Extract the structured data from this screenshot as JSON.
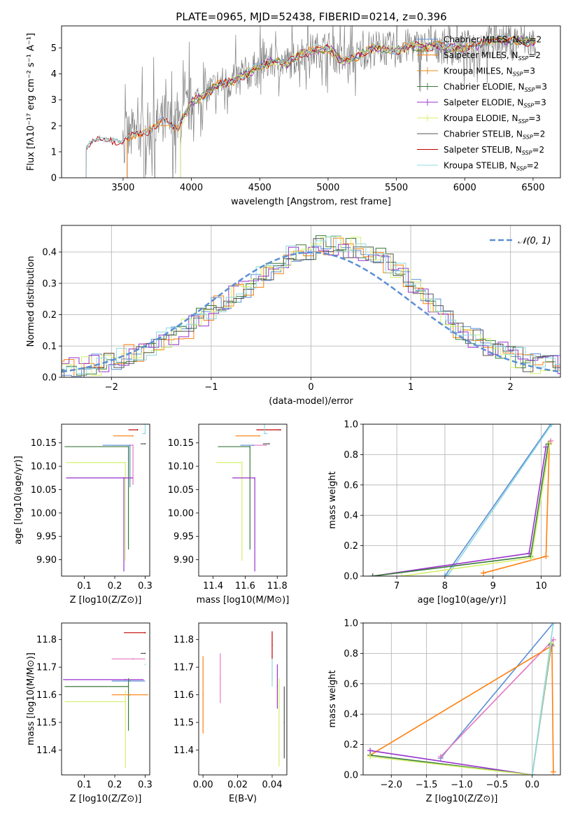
{
  "title": "PLATE=0965, MJD=52438, FIBERID=0214, z=0.396",
  "series_colors": {
    "Chabrier MILES": "#5b8fd6",
    "Salpeter MILES": "#ff7f0e",
    "Kroupa MILES": "#e08a1e",
    "Chabrier ELODIE": "#3c7a3c",
    "Salpeter ELODIE": "#9932cc",
    "Kroupa ELODIE": "#d4f06a",
    "Chabrier STELIB": "#555555",
    "Salpeter STELIB": "#c00000",
    "Kroupa STELIB": "#8fd8e0",
    "Extra": "#e377c2"
  },
  "chart_data": [
    {
      "type": "line",
      "id": "spectrum",
      "xlabel": "wavelength [Angstrom, rest frame]",
      "ylabel": "Flux [fλ10⁻¹⁷ erg cm⁻² s⁻¹ A⁻¹]",
      "xlim": [
        3050,
        6700
      ],
      "ylim": [
        0,
        5.85
      ],
      "xticks": [
        3500,
        4000,
        4500,
        5000,
        5500,
        6000,
        6500
      ],
      "yticks": [
        0,
        1,
        2,
        3,
        4,
        5
      ],
      "legend_position": "top-right",
      "legend": [
        "Chabrier MILES, N_SSP=2",
        "Salpeter MILES, N_SSP=2",
        "Kroupa MILES, N_SSP=3",
        "Chabrier ELODIE, N_SSP=3",
        "Salpeter ELODIE, N_SSP=3",
        "Kroupa ELODIE, N_SSP=3",
        "Chabrier STELIB, N_SSP=2",
        "Salpeter STELIB, N_SSP=2",
        "Kroupa STELIB, N_SSP=2"
      ],
      "continuum": {
        "x": [
          3230,
          3300,
          3400,
          3500,
          3600,
          3700,
          3800,
          3900,
          4000,
          4100,
          4200,
          4300,
          4400,
          4500,
          4600,
          4700,
          4800,
          4900,
          5000,
          5100,
          5200,
          5300,
          5400,
          5500,
          5600,
          5700,
          5800,
          5900,
          6000,
          6100,
          6200,
          6300,
          6400,
          6500
        ],
        "y": [
          1.2,
          1.45,
          1.5,
          1.4,
          1.7,
          1.85,
          2.2,
          1.9,
          2.9,
          3.2,
          3.6,
          3.7,
          4.0,
          4.3,
          4.5,
          4.4,
          4.8,
          4.9,
          5.0,
          4.5,
          4.6,
          5.0,
          5.0,
          4.9,
          5.1,
          5.0,
          5.1,
          5.0,
          5.0,
          5.1,
          5.3,
          5.3,
          5.3,
          5.2
        ]
      }
    },
    {
      "type": "line",
      "id": "residuals",
      "xlabel": "(data-model)/error",
      "ylabel": "Normed distribution",
      "xlim": [
        -2.5,
        2.5
      ],
      "ylim": [
        0,
        0.485
      ],
      "xticks": [
        -2,
        -1,
        0,
        1,
        2
      ],
      "yticks": [
        0,
        0.1,
        0.2,
        0.3,
        0.4
      ],
      "grid": true,
      "legend": [
        "𝒩(0, 1)"
      ],
      "legend_position": "top-right",
      "gaussian": {
        "mu": 0,
        "sigma": 1
      },
      "histogram_envelope": {
        "x": [
          -2.5,
          -2.0,
          -1.5,
          -1.2,
          -1.0,
          -0.7,
          -0.5,
          -0.3,
          -0.1,
          0.1,
          0.3,
          0.5,
          0.7,
          0.9,
          1.1,
          1.3,
          1.5,
          1.8,
          2.0,
          2.3,
          2.5
        ],
        "y": [
          0.02,
          0.05,
          0.11,
          0.16,
          0.22,
          0.27,
          0.32,
          0.37,
          0.4,
          0.42,
          0.42,
          0.41,
          0.38,
          0.33,
          0.27,
          0.2,
          0.15,
          0.1,
          0.07,
          0.04,
          0.035
        ]
      }
    },
    {
      "type": "scatter",
      "id": "age-vs-z",
      "xlabel": "Z [log10(Z/Z⊙)]",
      "ylabel": "age  [log10(age/yr)]",
      "xlim": [
        0.025,
        0.315
      ],
      "ylim": [
        9.865,
        10.19
      ],
      "xticks": [
        0.1,
        0.2,
        0.3
      ],
      "yticks": [
        9.9,
        9.95,
        10.0,
        10.05,
        10.1,
        10.15
      ],
      "points": [
        {
          "series": "Salpeter STELIB",
          "x": 0.275,
          "y": 10.178,
          "xerr": [
            0.03,
            0.0
          ],
          "yerr": [
            0.0,
            0.0
          ]
        },
        {
          "series": "Salpeter MILES",
          "x": 0.26,
          "y": 10.165,
          "xerr": [
            0.065,
            0.0
          ],
          "yerr": [
            0.0,
            0.0
          ]
        },
        {
          "series": "Kroupa STELIB",
          "x": 0.3,
          "y": 10.17,
          "xerr": [
            0.01,
            0.0
          ],
          "yerr": [
            0.0,
            0.07
          ]
        },
        {
          "series": "Chabrier STELIB",
          "x": 0.3,
          "y": 10.148,
          "xerr": [
            0.015,
            0.0
          ],
          "yerr": [
            0.0,
            0.0
          ]
        },
        {
          "series": "Extra",
          "x": 0.26,
          "y": 10.145,
          "xerr": [
            0.065,
            0.0
          ],
          "yerr": [
            0.085,
            0.0
          ]
        },
        {
          "series": "Chabrier MILES",
          "x": 0.25,
          "y": 10.145,
          "xerr": [
            0.09,
            0.0
          ],
          "yerr": [
            0.09,
            0.0
          ]
        },
        {
          "series": "Chabrier ELODIE",
          "x": 0.245,
          "y": 10.142,
          "xerr": [
            0.21,
            0.0
          ],
          "yerr": [
            0.22,
            0.0
          ]
        },
        {
          "series": "Kroupa ELODIE",
          "x": 0.235,
          "y": 10.108,
          "xerr": [
            0.195,
            0.0
          ],
          "yerr": [
            0.21,
            0.0
          ]
        },
        {
          "series": "Salpeter ELODIE",
          "x": 0.23,
          "y": 10.075,
          "xerr": [
            0.19,
            0.03
          ],
          "yerr": [
            0.2,
            0.0
          ]
        }
      ]
    },
    {
      "type": "scatter",
      "id": "age-vs-mass",
      "xlabel": "mass [log10(M/M⊙)]",
      "ylabel": "",
      "xlim": [
        11.31,
        11.86
      ],
      "ylim": [
        9.865,
        10.19
      ],
      "xticks": [
        11.4,
        11.6,
        11.8
      ],
      "yticks": [
        9.9,
        9.95,
        10.0,
        10.05,
        10.1,
        10.15
      ],
      "points": [
        {
          "series": "Salpeter STELIB",
          "x": 11.82,
          "y": 10.178,
          "xerr": [
            0.15,
            0.0
          ],
          "yerr": [
            0.0,
            0.0
          ]
        },
        {
          "series": "Salpeter MILES",
          "x": 11.69,
          "y": 10.165,
          "xerr": [
            0.15,
            0.0
          ],
          "yerr": [
            0.0,
            0.0
          ]
        },
        {
          "series": "Kroupa STELIB",
          "x": 11.72,
          "y": 10.17,
          "xerr": [
            0.0,
            0.02
          ],
          "yerr": [
            0.0,
            0.04
          ]
        },
        {
          "series": "Chabrier STELIB",
          "x": 11.75,
          "y": 10.148,
          "xerr": [
            0.04,
            0.0
          ],
          "yerr": [
            0.0,
            0.0
          ]
        },
        {
          "series": "Extra",
          "x": 11.73,
          "y": 10.145,
          "xerr": [
            0.1,
            0.0
          ],
          "yerr": [
            0.0,
            0.0
          ]
        },
        {
          "series": "Chabrier MILES",
          "x": 11.65,
          "y": 10.145,
          "xerr": [
            0.08,
            0.0
          ],
          "yerr": [
            0.0,
            0.0
          ]
        },
        {
          "series": "Chabrier ELODIE",
          "x": 11.63,
          "y": 10.142,
          "xerr": [
            0.2,
            0.0
          ],
          "yerr": [
            0.22,
            0.0
          ]
        },
        {
          "series": "Kroupa ELODIE",
          "x": 11.58,
          "y": 10.108,
          "xerr": [
            0.16,
            0.0
          ],
          "yerr": [
            0.21,
            0.0
          ]
        },
        {
          "series": "Salpeter ELODIE",
          "x": 11.66,
          "y": 10.075,
          "xerr": [
            0.14,
            0.0
          ],
          "yerr": [
            0.2,
            0.0
          ]
        }
      ]
    },
    {
      "type": "line",
      "id": "mass-weight-vs-age",
      "xlabel": "age  [log10(age/yr)]",
      "ylabel": "mass weight",
      "xlim": [
        6.3,
        10.4
      ],
      "ylim": [
        0,
        1
      ],
      "xticks": [
        7,
        8,
        9,
        10
      ],
      "yticks": [
        0,
        0.2,
        0.4,
        0.6,
        0.8,
        1.0
      ],
      "grid": true,
      "series": [
        {
          "series": "Chabrier MILES",
          "x": [
            8.0,
            10.2
          ],
          "y": [
            0.0,
            1.0
          ]
        },
        {
          "series": "Kroupa STELIB",
          "x": [
            8.05,
            10.22
          ],
          "y": [
            0.0,
            1.0
          ]
        },
        {
          "series": "Salpeter MILES",
          "x": [
            8.8,
            10.1,
            10.17
          ],
          "y": [
            0.02,
            0.13,
            0.87
          ]
        },
        {
          "series": "Salpeter ELODIE",
          "x": [
            6.5,
            9.75,
            10.1
          ],
          "y": [
            0.0,
            0.15,
            0.85
          ]
        },
        {
          "series": "Chabrier ELODIE",
          "x": [
            6.5,
            9.78,
            10.15
          ],
          "y": [
            0.0,
            0.13,
            0.87
          ]
        },
        {
          "series": "Kroupa ELODIE",
          "x": [
            7.1,
            9.8,
            10.18
          ],
          "y": [
            0.0,
            0.12,
            0.88
          ]
        },
        {
          "series": "Extra",
          "x": [
            10.2
          ],
          "y": [
            0.89
          ]
        }
      ]
    },
    {
      "type": "scatter",
      "id": "mass-vs-z",
      "xlabel": "Z [log10(Z/Z⊙)]",
      "ylabel": "mass [log10(M/M⊙)]",
      "xlim": [
        0.025,
        0.315
      ],
      "ylim": [
        11.31,
        11.86
      ],
      "xticks": [
        0.1,
        0.2,
        0.3
      ],
      "yticks": [
        11.4,
        11.5,
        11.6,
        11.7,
        11.8
      ],
      "points": [
        {
          "series": "Salpeter STELIB",
          "x": 0.3,
          "y": 11.825,
          "xerr": [
            0.07,
            0.0
          ],
          "yerr": [
            0.0,
            0.0
          ]
        },
        {
          "series": "Chabrier STELIB",
          "x": 0.3,
          "y": 11.75,
          "xerr": [
            0.015,
            0.0
          ],
          "yerr": [
            0.0,
            0.0
          ]
        },
        {
          "series": "Extra",
          "x": 0.26,
          "y": 11.73,
          "xerr": [
            0.07,
            0.04
          ],
          "yerr": [
            0.0,
            0.0
          ]
        },
        {
          "series": "Kroupa STELIB",
          "x": 0.3,
          "y": 11.71,
          "xerr": [
            0.0,
            0.0
          ],
          "yerr": [
            0.0,
            0.0
          ]
        },
        {
          "series": "Salpeter ELODIE",
          "x": 0.235,
          "y": 11.655,
          "xerr": [
            0.205,
            0.06
          ],
          "yerr": [
            0.0,
            0.0
          ]
        },
        {
          "series": "Chabrier MILES",
          "x": 0.25,
          "y": 11.65,
          "xerr": [
            0.06,
            0.05
          ],
          "yerr": [
            0.0,
            0.0
          ]
        },
        {
          "series": "Chabrier ELODIE",
          "x": 0.245,
          "y": 11.63,
          "xerr": [
            0.21,
            0.0
          ],
          "yerr": [
            0.16,
            0.03
          ]
        },
        {
          "series": "Salpeter MILES",
          "x": 0.25,
          "y": 11.6,
          "xerr": [
            0.06,
            0.06
          ],
          "yerr": [
            0.0,
            0.0
          ]
        },
        {
          "series": "Kroupa ELODIE",
          "x": 0.235,
          "y": 11.575,
          "xerr": [
            0.2,
            0.0
          ],
          "yerr": [
            0.24,
            0.04
          ]
        }
      ]
    },
    {
      "type": "scatter",
      "id": "mass-vs-ebv",
      "xlabel": "E(B-V)",
      "ylabel": "",
      "xlim": [
        -0.0025,
        0.0485
      ],
      "ylim": [
        11.31,
        11.86
      ],
      "xticks": [
        0.0,
        0.02,
        0.04
      ],
      "yticks": [
        11.4,
        11.5,
        11.6,
        11.7,
        11.8
      ],
      "points": [
        {
          "series": "Salpeter MILES",
          "x": 0.0,
          "y": 11.6,
          "yerr": [
            0.14,
            0.14
          ]
        },
        {
          "series": "Extra",
          "x": 0.01,
          "y": 11.66,
          "yerr": [
            0.09,
            0.09
          ]
        },
        {
          "series": "Salpeter STELIB",
          "x": 0.04,
          "y": 11.78,
          "yerr": [
            0.05,
            0.05
          ]
        },
        {
          "series": "Kroupa STELIB",
          "x": 0.04,
          "y": 11.68,
          "yerr": [
            0.05,
            0.05
          ]
        },
        {
          "series": "Salpeter ELODIE",
          "x": 0.043,
          "y": 11.63,
          "yerr": [
            0.08,
            0.08
          ]
        },
        {
          "series": "Kroupa ELODIE",
          "x": 0.044,
          "y": 11.5,
          "yerr": [
            0.16,
            0.16
          ]
        },
        {
          "series": "Chabrier STELIB",
          "x": 0.047,
          "y": 11.5,
          "yerr": [
            0.13,
            0.13
          ]
        }
      ]
    },
    {
      "type": "line",
      "id": "mass-weight-vs-z",
      "xlabel": "Z [log10(Z/Z⊙)]",
      "ylabel": "mass weight",
      "xlim": [
        -2.4,
        0.4
      ],
      "ylim": [
        0,
        1
      ],
      "xticks": [
        -2.0,
        -1.5,
        -1.0,
        -0.5,
        0.0
      ],
      "yticks": [
        0,
        0.2,
        0.4,
        0.6,
        0.8,
        1.0
      ],
      "grid": true,
      "series": [
        {
          "series": "Chabrier MILES",
          "x": [
            -1.3,
            0.3
          ],
          "y": [
            0.11,
            1.0
          ]
        },
        {
          "series": "Extra",
          "x": [
            -1.3,
            0.3
          ],
          "y": [
            0.12,
            0.89
          ]
        },
        {
          "series": "Salpeter MILES",
          "x": [
            -2.3,
            0.28,
            0.3
          ],
          "y": [
            0.13,
            0.85,
            0.02
          ]
        },
        {
          "series": "Salpeter ELODIE",
          "x": [
            -2.3,
            0.0,
            0.27
          ],
          "y": [
            0.16,
            0.0,
            0.85
          ]
        },
        {
          "series": "Chabrier ELODIE",
          "x": [
            -2.3,
            0.0,
            0.27
          ],
          "y": [
            0.13,
            0.0,
            0.86
          ]
        },
        {
          "series": "Kroupa ELODIE",
          "x": [
            -2.3,
            0.0,
            0.27
          ],
          "y": [
            0.12,
            0.0,
            0.87
          ]
        },
        {
          "series": "Kroupa STELIB",
          "x": [
            0.0,
            0.3
          ],
          "y": [
            0.0,
            1.0
          ]
        }
      ]
    }
  ]
}
